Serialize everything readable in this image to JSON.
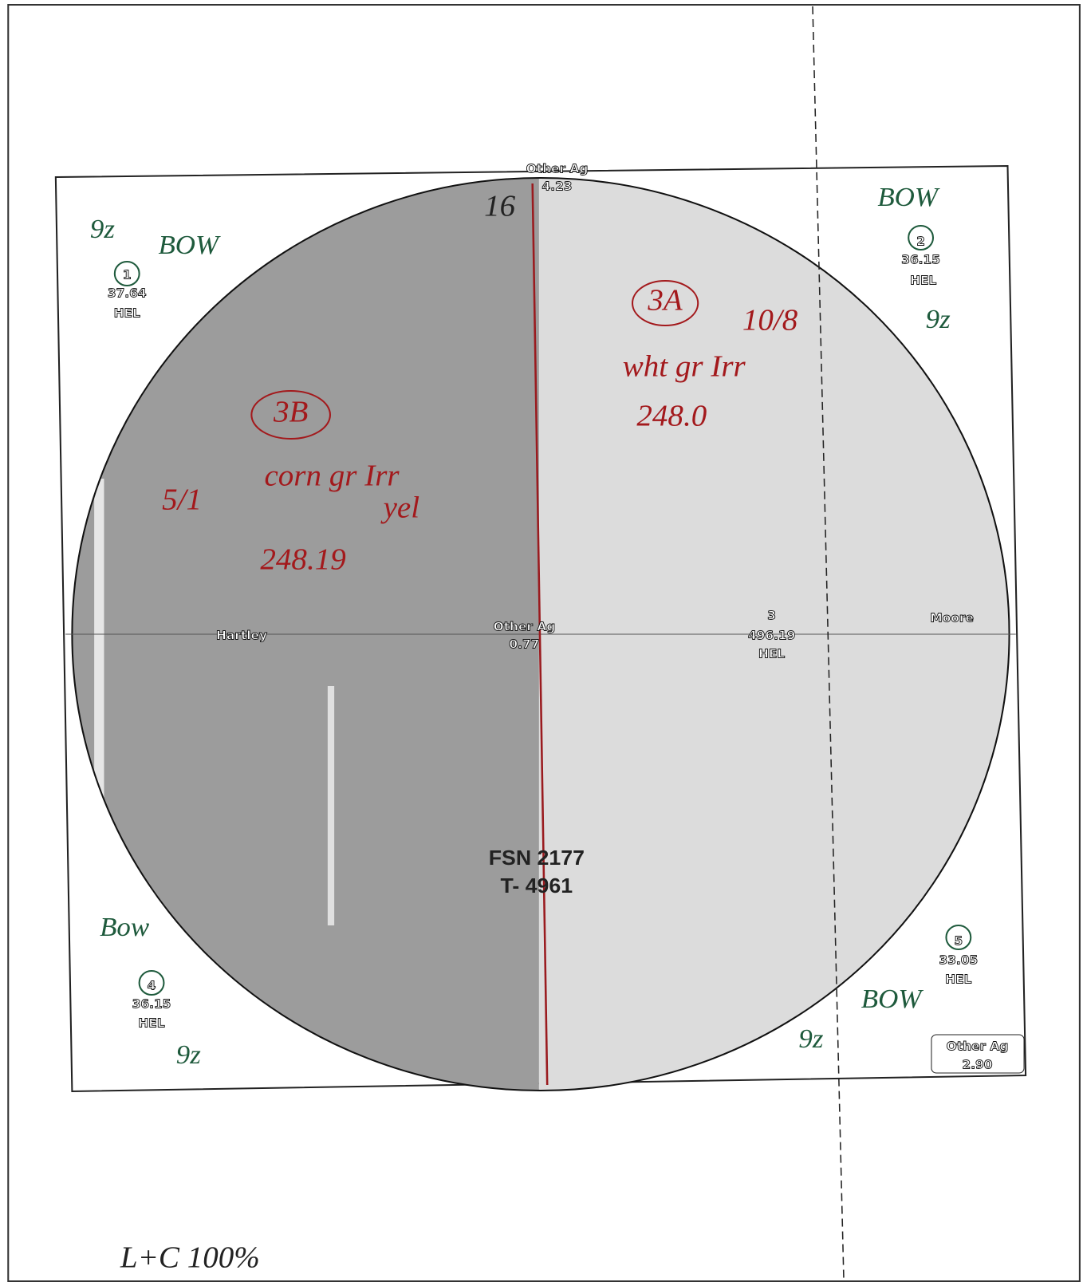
{
  "top_boundary": {
    "label": "Other Ag",
    "acres": "4.23"
  },
  "center_boundary": {
    "label": "Other Ag",
    "acres": "0.77"
  },
  "corner_boundary": {
    "label": "Other Ag",
    "acres": "2.90"
  },
  "tracts": [
    {
      "number": "1",
      "acres": "37.64",
      "code": "HEL"
    },
    {
      "number": "2",
      "acres": "36.15",
      "code": "HEL"
    },
    {
      "number": "3",
      "acres": "496.19",
      "code": "HEL"
    },
    {
      "number": "4",
      "acres": "36.15",
      "code": "HEL"
    },
    {
      "number": "5",
      "acres": "33.05",
      "code": "HEL"
    }
  ],
  "neighbors": [
    "Hartley",
    "Moore"
  ],
  "farm": {
    "fsn": "FSN 2177",
    "tract": "T- 4961"
  },
  "handwritten": {
    "section": "16",
    "field_3a": {
      "id": "3A",
      "date": "10/8",
      "crop": "wht gr Irr",
      "acres": "248.0"
    },
    "field_3b": {
      "id": "3B",
      "date": "5/1",
      "crop": "corn gr Irr",
      "color": "yel",
      "acres": "248.19"
    },
    "corner_notes": [
      [
        "9z",
        "BOW"
      ],
      [
        "BOW",
        "9z"
      ],
      [
        "Bow",
        "9z"
      ],
      [
        "BOW",
        "9z"
      ]
    ],
    "footer": "L+C 100%"
  }
}
